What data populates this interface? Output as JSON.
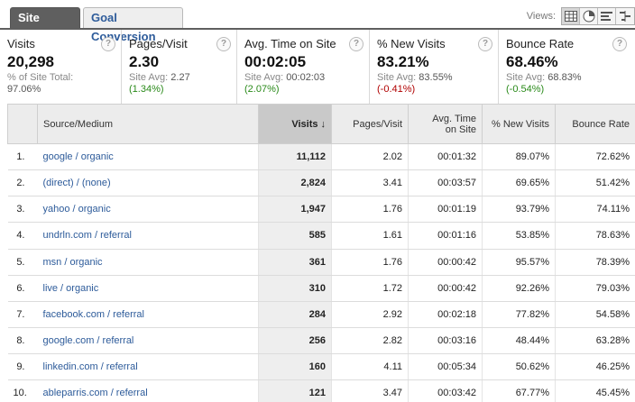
{
  "tabs": [
    {
      "label": "Site Usage",
      "active": true
    },
    {
      "label": "Goal Conversion",
      "active": false
    }
  ],
  "views": {
    "label": "Views:",
    "buttons": [
      {
        "icon": "table-view-icon",
        "active": true
      },
      {
        "icon": "pie-view-icon",
        "active": false
      },
      {
        "icon": "performance-view-icon",
        "active": false
      },
      {
        "icon": "comparison-view-icon",
        "active": false
      }
    ]
  },
  "metrics": [
    {
      "name": "Visits",
      "value": "20,298",
      "sub1": "% of Site Total:",
      "sub2": "97.06%",
      "change": "",
      "change_sign": ""
    },
    {
      "name": "Pages/Visit",
      "value": "2.30",
      "sub1_label": "Site Avg:",
      "sub1_value": "2.27",
      "change": "(1.34%)",
      "change_sign": "positive"
    },
    {
      "name": "Avg. Time on Site",
      "value": "00:02:05",
      "sub1_label": "Site Avg:",
      "sub1_value": "00:02:03",
      "change": "(2.07%)",
      "change_sign": "positive"
    },
    {
      "name": "% New Visits",
      "value": "83.21%",
      "sub1_label": "Site Avg:",
      "sub1_value": "83.55%",
      "change": "(-0.41%)",
      "change_sign": "negative"
    },
    {
      "name": "Bounce Rate",
      "value": "68.46%",
      "sub1_label": "Site Avg:",
      "sub1_value": "68.83%",
      "change": "(-0.54%)",
      "change_sign": "positive"
    }
  ],
  "help_glyph": "?",
  "table": {
    "headers": {
      "source": "Source/Medium",
      "visits": "Visits",
      "sort_arrow": "↓",
      "pages": "Pages/Visit",
      "time_line1": "Avg. Time",
      "time_line2": "on Site",
      "new": "% New Visits",
      "bounce": "Bounce Rate"
    },
    "rows": [
      {
        "idx": "1.",
        "source": "google / organic",
        "visits": "11,112",
        "pages": "2.02",
        "time": "00:01:32",
        "new": "89.07%",
        "bounce": "72.62%"
      },
      {
        "idx": "2.",
        "source": "(direct) / (none)",
        "visits": "2,824",
        "pages": "3.41",
        "time": "00:03:57",
        "new": "69.65%",
        "bounce": "51.42%"
      },
      {
        "idx": "3.",
        "source": "yahoo / organic",
        "visits": "1,947",
        "pages": "1.76",
        "time": "00:01:19",
        "new": "93.79%",
        "bounce": "74.11%"
      },
      {
        "idx": "4.",
        "source": "undrln.com / referral",
        "visits": "585",
        "pages": "1.61",
        "time": "00:01:16",
        "new": "53.85%",
        "bounce": "78.63%"
      },
      {
        "idx": "5.",
        "source": "msn / organic",
        "visits": "361",
        "pages": "1.76",
        "time": "00:00:42",
        "new": "95.57%",
        "bounce": "78.39%"
      },
      {
        "idx": "6.",
        "source": "live / organic",
        "visits": "310",
        "pages": "1.72",
        "time": "00:00:42",
        "new": "92.26%",
        "bounce": "79.03%"
      },
      {
        "idx": "7.",
        "source": "facebook.com / referral",
        "visits": "284",
        "pages": "2.92",
        "time": "00:02:18",
        "new": "77.82%",
        "bounce": "54.58%"
      },
      {
        "idx": "8.",
        "source": "google.com / referral",
        "visits": "256",
        "pages": "2.82",
        "time": "00:03:16",
        "new": "48.44%",
        "bounce": "63.28%"
      },
      {
        "idx": "9.",
        "source": "linkedin.com / referral",
        "visits": "160",
        "pages": "4.11",
        "time": "00:05:34",
        "new": "50.62%",
        "bounce": "46.25%"
      },
      {
        "idx": "10.",
        "source": "ableparris.com / referral",
        "visits": "121",
        "pages": "3.47",
        "time": "00:03:42",
        "new": "67.77%",
        "bounce": "45.45%"
      }
    ]
  },
  "colors": {
    "active_tab": "#5f5f5f",
    "link": "#2d5b9a",
    "positive": "#2a8a1a",
    "negative": "#b00000"
  }
}
